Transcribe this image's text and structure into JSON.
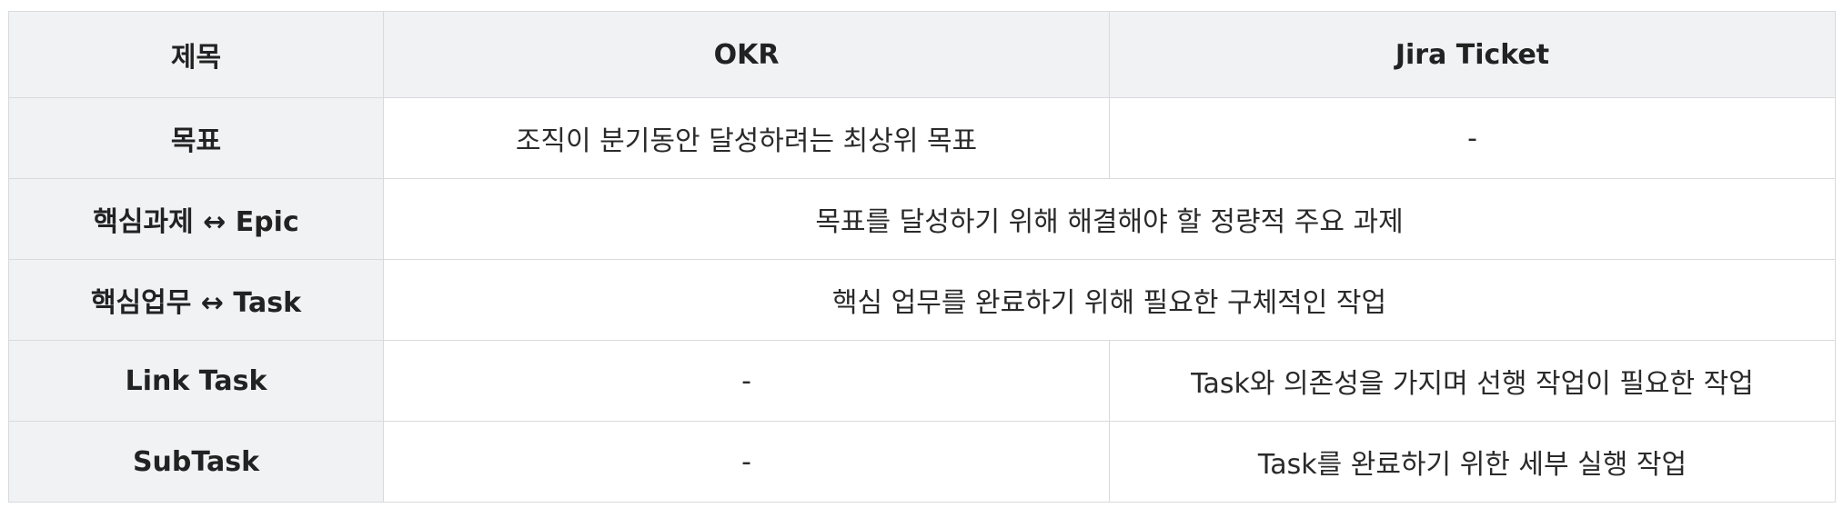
{
  "table": {
    "headers": [
      "제목",
      "OKR",
      "Jira Ticket"
    ],
    "rows": [
      {
        "label": "목표",
        "okr": "조직이 분기동안 달성하려는 최상위 목표",
        "jira": "-"
      },
      {
        "label": "핵심과제 ↔ Epic",
        "merged": "목표를 달성하기 위해 해결해야 할 정량적 주요 과제"
      },
      {
        "label": "핵심업무 ↔ Task",
        "merged": "핵심 업무를 완료하기 위해 필요한 구체적인 작업"
      },
      {
        "label": "Link Task",
        "okr": "-",
        "jira": "Task와 의존성을 가지며 선행 작업이 필요한 작업"
      },
      {
        "label": "SubTask",
        "okr": "-",
        "jira": "Task를 완료하기 위한 세부 실행 작업"
      }
    ]
  },
  "colors": {
    "header_bg": "#f1f2f4",
    "border": "#d9dadd",
    "cell_bg": "#ffffff"
  }
}
